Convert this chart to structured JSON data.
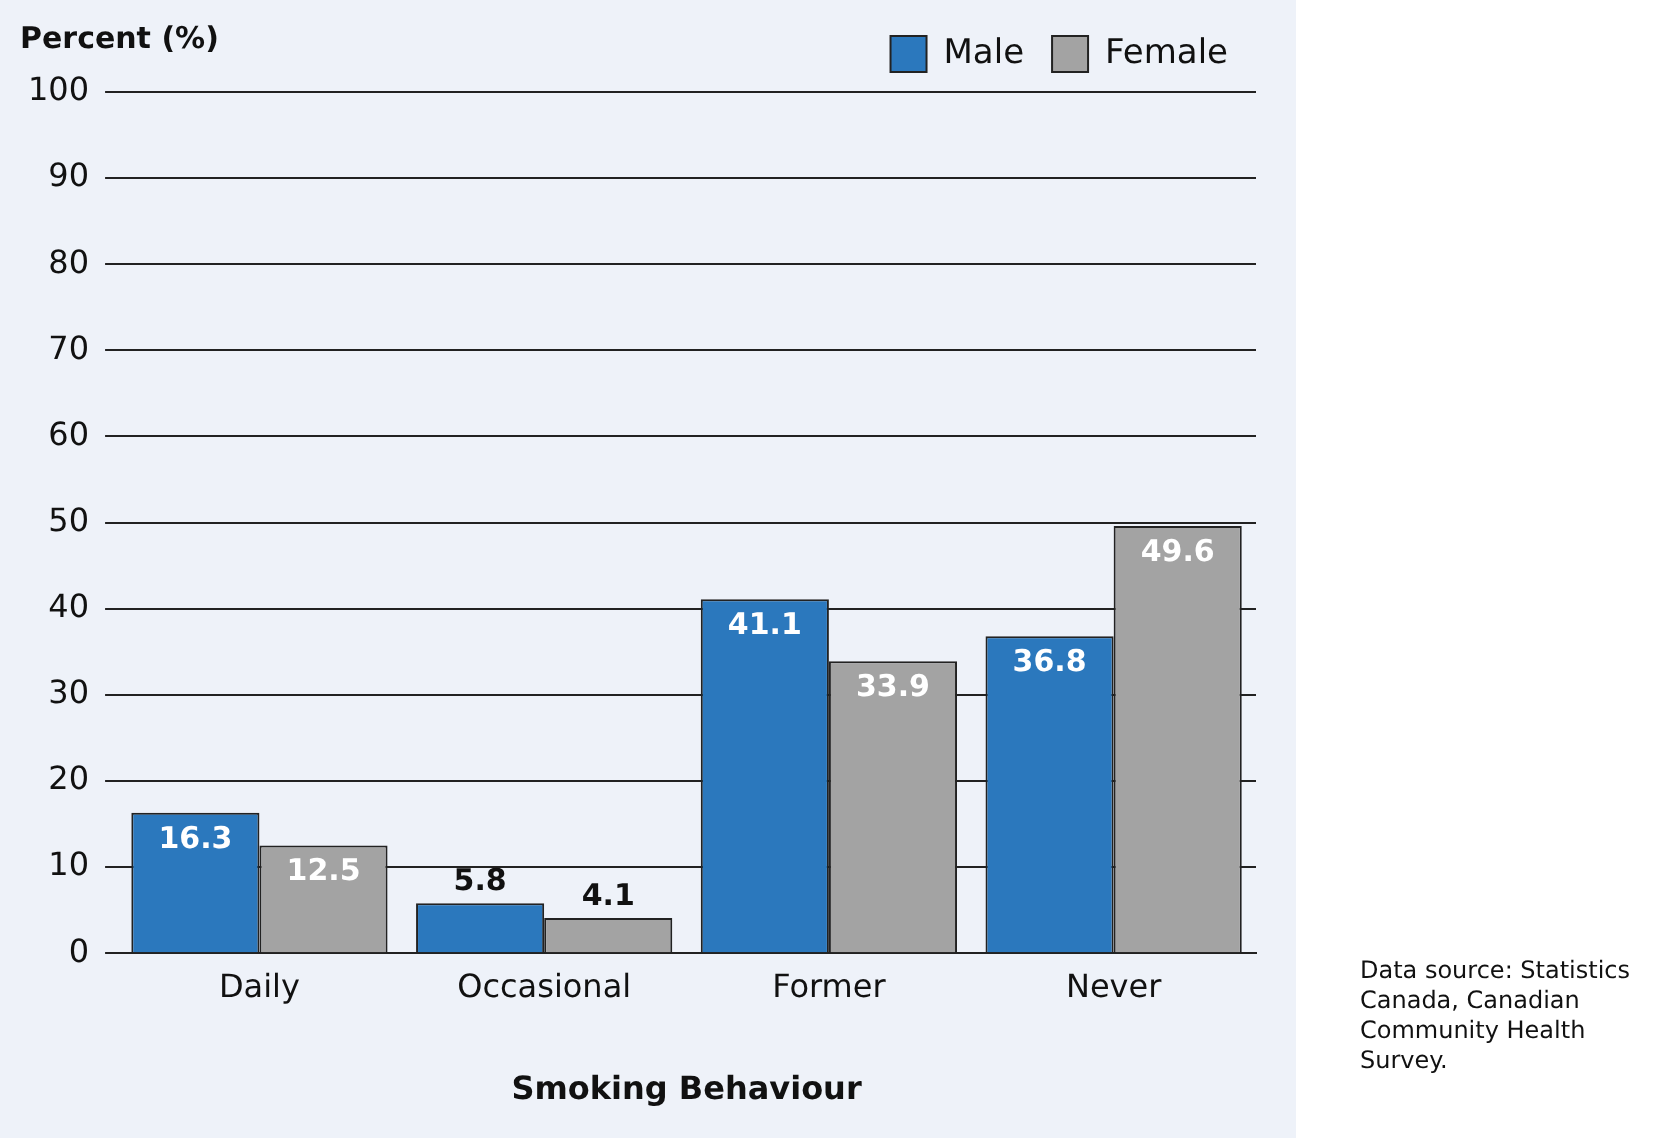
{
  "chart_data": {
    "type": "bar",
    "ylabel": "Percent (%)",
    "xlabel": "Smoking Behaviour",
    "categories": [
      "Daily",
      "Occasional",
      "Former",
      "Never"
    ],
    "series": [
      {
        "name": "Male",
        "color": "#2b78bd",
        "values": [
          16.3,
          5.8,
          41.1,
          36.8
        ]
      },
      {
        "name": "Female",
        "color": "#a3a3a3",
        "values": [
          12.5,
          4.1,
          33.9,
          49.6
        ]
      }
    ],
    "ylim": [
      0,
      100
    ],
    "yticks": [
      0,
      10,
      20,
      30,
      40,
      50,
      60,
      70,
      80,
      90,
      100
    ],
    "grid": "y",
    "legend": "top right",
    "data_labels": true,
    "annotations": [
      "Data source: Statistics Canada, Canadian Community Health Survey."
    ]
  }
}
